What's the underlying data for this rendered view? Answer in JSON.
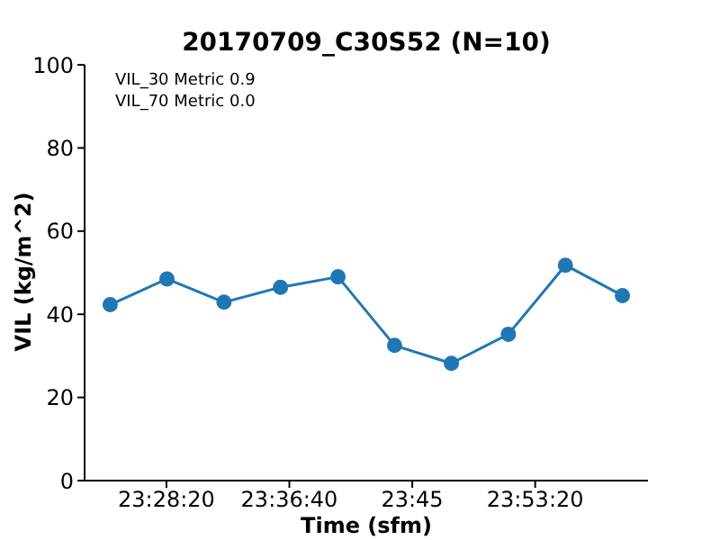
{
  "chart_data": {
    "type": "line",
    "title": "20170709_C30S52 (N=10)",
    "xlabel": "Time (sfm)",
    "ylabel": "VIL (kg/m^2)",
    "annotations": [
      "VIL_30 Metric 0.9",
      "VIL_70 Metric 0.0"
    ],
    "x": [
      23.40861,
      23.47278,
      23.53722,
      23.60111,
      23.66611,
      23.73,
      23.79417,
      23.85861,
      23.92306,
      23.9875
    ],
    "series": [
      {
        "color": "#1f77b4",
        "values": [
          42.3,
          48.5,
          42.9,
          46.5,
          49.0,
          32.5,
          28.2,
          35.2,
          51.8,
          44.5
        ]
      }
    ],
    "xlim": [
      23.37972,
      24.01639
    ],
    "xticks": [
      {
        "value": 23.47222,
        "label": "23:28:20"
      },
      {
        "value": 23.61111,
        "label": "23:36:40"
      },
      {
        "value": 23.75,
        "label": "23:45"
      },
      {
        "value": 23.88889,
        "label": "23:53:20"
      }
    ],
    "ylim": [
      0,
      100
    ],
    "yticks": [
      0,
      20,
      40,
      60,
      80,
      100
    ],
    "marker": "circle",
    "line_style": "solid"
  }
}
